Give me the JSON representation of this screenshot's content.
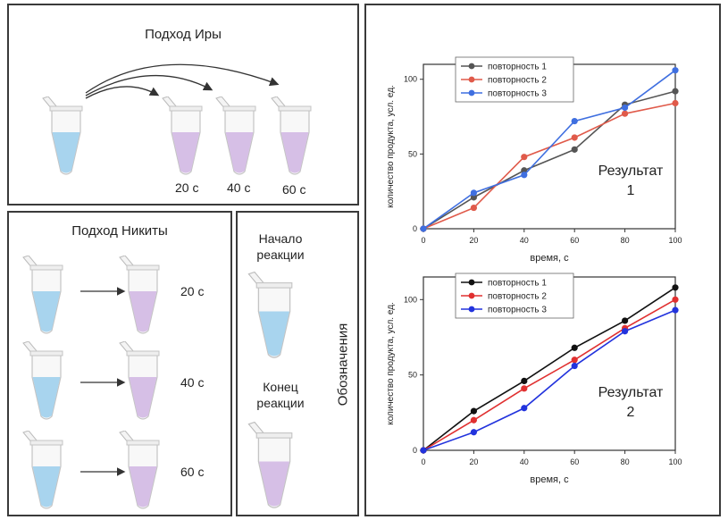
{
  "ira": {
    "title": "Подход Иры",
    "times": [
      "20 с",
      "40 с",
      "60 с"
    ]
  },
  "nikita": {
    "title": "Подход Никиты",
    "times": [
      "20 с",
      "40 с",
      "60 с"
    ]
  },
  "legend": {
    "start": "Начало реакции",
    "end": "Конец реакции",
    "title": "Обозначения"
  },
  "colors": {
    "start_liquid": "#a8d4ee",
    "end_liquid": "#d6bfe6",
    "series1": "#555555",
    "series2": "#e05a4a",
    "series3": "#3f6fe0"
  },
  "chart_data": [
    {
      "type": "line",
      "caption": "Результат 1",
      "xlabel": "время, с",
      "ylabel": "количество продукта, усл. ед.",
      "xlim": [
        0,
        100
      ],
      "ylim": [
        0,
        110
      ],
      "xticks": [
        0,
        20,
        40,
        60,
        80,
        100
      ],
      "yticks": [
        0,
        50,
        100
      ],
      "x": [
        0,
        20,
        40,
        60,
        80,
        100
      ],
      "legend_position": "top-left",
      "series": [
        {
          "name": "повторность 1",
          "color": "#555555",
          "values": [
            0,
            21,
            39,
            53,
            83,
            92
          ]
        },
        {
          "name": "повторность 2",
          "color": "#e05a4a",
          "values": [
            0,
            14,
            48,
            61,
            77,
            84
          ]
        },
        {
          "name": "повторность 3",
          "color": "#3f6fe0",
          "values": [
            0,
            24,
            36,
            72,
            81,
            106
          ]
        }
      ]
    },
    {
      "type": "line",
      "caption": "Результат 2",
      "xlabel": "время, с",
      "ylabel": "количество продукта, усл. ед.",
      "xlim": [
        0,
        100
      ],
      "ylim": [
        0,
        115
      ],
      "xticks": [
        0,
        20,
        40,
        60,
        80,
        100
      ],
      "yticks": [
        0,
        50,
        100
      ],
      "x": [
        0,
        20,
        40,
        60,
        80,
        100
      ],
      "legend_position": "top-left",
      "series": [
        {
          "name": "повторность 1",
          "color": "#111111",
          "values": [
            0,
            26,
            46,
            68,
            86,
            108
          ]
        },
        {
          "name": "повторность 2",
          "color": "#e03030",
          "values": [
            0,
            20,
            41,
            60,
            81,
            100
          ]
        },
        {
          "name": "повторность 3",
          "color": "#2233dd",
          "values": [
            0,
            12,
            28,
            56,
            79,
            93
          ]
        }
      ]
    }
  ]
}
